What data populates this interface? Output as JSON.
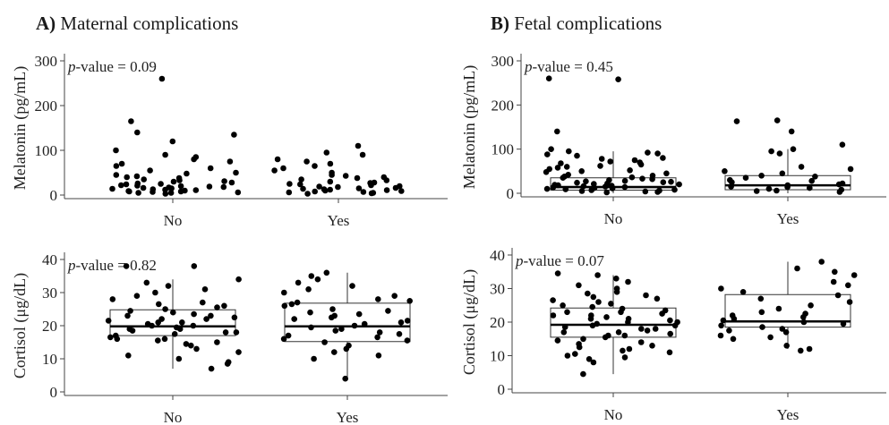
{
  "sections": {
    "a": {
      "letter": "A)",
      "title": "Maternal complications"
    },
    "b": {
      "letter": "B)",
      "title": "Fetal complications"
    }
  },
  "chart_data": [
    {
      "id": "a-melatonin",
      "type": "scatter",
      "title": "Maternal complications",
      "ylabel": "Melatonin (pg/mL)",
      "ylim": [
        0,
        300
      ],
      "yticks": [
        0,
        100,
        200,
        300
      ],
      "categories": [
        "No",
        "Yes"
      ],
      "annotation_prefix": "p",
      "annotation_suffix": "-value = 0.09",
      "boxes": null,
      "points": [
        [
          15,
          8,
          22,
          5,
          12,
          30,
          45,
          18,
          10,
          25,
          35,
          60,
          80,
          100,
          120,
          140,
          85,
          40,
          20,
          5,
          8,
          14,
          28,
          50,
          70,
          90,
          135,
          165,
          260,
          33,
          11,
          16,
          9,
          6,
          3,
          42,
          38,
          55,
          24,
          19,
          13,
          7,
          65,
          75,
          26,
          31,
          17,
          21,
          48
        ],
        [
          10,
          5,
          15,
          25,
          35,
          45,
          60,
          80,
          95,
          90,
          110,
          20,
          8,
          12,
          18,
          30,
          40,
          50,
          70,
          75,
          14,
          22,
          6,
          3,
          28,
          33,
          9,
          16,
          11,
          4,
          38,
          43,
          55,
          65,
          19,
          24,
          13,
          7,
          27
        ]
      ]
    },
    {
      "id": "b-melatonin",
      "type": "box",
      "title": "Fetal complications",
      "ylabel": "Melatonin (pg/mL)",
      "ylim": [
        0,
        300
      ],
      "yticks": [
        0,
        100,
        200,
        300
      ],
      "categories": [
        "No",
        "Yes"
      ],
      "annotation_prefix": "p",
      "annotation_suffix": "-value = 0.45",
      "boxes": [
        {
          "category": "No",
          "q1": 7,
          "median": 14,
          "q3": 35,
          "whisker_low": 0,
          "whisker_high": 95
        },
        {
          "category": "Yes",
          "q1": 8,
          "median": 18,
          "q3": 40,
          "whisker_low": 0,
          "whisker_high": 100
        }
      ],
      "points": [
        [
          5,
          8,
          10,
          12,
          14,
          15,
          18,
          20,
          22,
          25,
          28,
          30,
          35,
          40,
          45,
          50,
          55,
          60,
          65,
          70,
          75,
          80,
          85,
          90,
          95,
          100,
          140,
          260,
          258,
          3,
          6,
          9,
          11,
          13,
          16,
          17,
          19,
          21,
          24,
          27,
          32,
          38,
          42,
          48,
          52,
          58,
          62,
          68,
          72,
          78,
          88,
          92,
          2,
          4,
          7,
          26,
          33,
          36
        ],
        [
          5,
          10,
          15,
          20,
          25,
          30,
          35,
          40,
          50,
          60,
          90,
          95,
          100,
          110,
          140,
          165,
          163,
          8,
          12,
          18,
          22,
          28,
          45,
          55,
          3,
          6,
          14,
          38
        ]
      ]
    },
    {
      "id": "a-cortisol",
      "type": "box",
      "title": "Maternal complications",
      "ylabel": "Cortisol (μg/dL)",
      "ylim": [
        0,
        40
      ],
      "yticks": [
        0,
        10,
        20,
        30,
        40
      ],
      "categories": [
        "No",
        "Yes"
      ],
      "annotation_prefix": "p",
      "annotation_suffix": "-value = 0.82",
      "boxes": [
        {
          "category": "No",
          "q1": 17,
          "median": 19.8,
          "q3": 24.8,
          "whisker_low": 7,
          "whisker_high": 34
        },
        {
          "category": "Yes",
          "q1": 15.2,
          "median": 19.8,
          "q3": 26.8,
          "whisker_low": 4,
          "whisker_high": 36
        }
      ],
      "points": [
        [
          7,
          9,
          10,
          12,
          14,
          15,
          16,
          17,
          18,
          19,
          20,
          21,
          22,
          23,
          24,
          25,
          26,
          27,
          28,
          30,
          32,
          34,
          38,
          38,
          13,
          11,
          18.5,
          19.5,
          20.5,
          21.5,
          22.5,
          17.5,
          16.5,
          15.5,
          24.5,
          23.5,
          29,
          31,
          33,
          8.5,
          14.5,
          26.5,
          25.5,
          19,
          20,
          22,
          18,
          21,
          16,
          23
        ],
        [
          4,
          10,
          12,
          14,
          15,
          16,
          17,
          18,
          19,
          20,
          21,
          22,
          23,
          24,
          25,
          26,
          27,
          28,
          29,
          30,
          32,
          34,
          36,
          35,
          11,
          13,
          19.5,
          20.5,
          17.5,
          21.5,
          22.5,
          15.5,
          24.5,
          18.5,
          26.5,
          31,
          33,
          16.5,
          23.5,
          27.5
        ]
      ]
    },
    {
      "id": "b-cortisol",
      "type": "box",
      "title": "Fetal complications",
      "ylabel": "Cortisol (μg/dL)",
      "ylim": [
        0,
        40
      ],
      "yticks": [
        0,
        10,
        20,
        30,
        40
      ],
      "categories": [
        "No",
        "Yes"
      ],
      "annotation_prefix": "p",
      "annotation_suffix": "-value = 0.07",
      "boxes": [
        {
          "category": "No",
          "q1": 15.5,
          "median": 19.2,
          "q3": 24.2,
          "whisker_low": 4.5,
          "whisker_high": 34
        },
        {
          "category": "Yes",
          "q1": 18.5,
          "median": 20.2,
          "q3": 28.2,
          "whisker_low": 12,
          "whisker_high": 38
        }
      ],
      "points": [
        [
          4.5,
          8,
          9,
          10,
          11,
          12,
          13,
          14,
          15,
          16,
          17,
          18,
          19,
          20,
          21,
          22,
          23,
          24,
          25,
          26,
          27,
          28,
          29,
          30,
          32,
          34,
          34.5,
          18.5,
          19.5,
          20.5,
          17.5,
          16.5,
          21.5,
          22.5,
          15.5,
          14.5,
          23.5,
          24.5,
          12.5,
          13.5,
          26.5,
          27.5,
          19,
          20,
          18,
          21,
          17,
          22,
          16,
          23,
          25.5,
          28.5,
          31,
          33,
          11.5,
          10.5,
          9.5
        ],
        [
          12,
          13,
          15,
          16,
          17,
          18,
          19,
          20,
          21,
          22,
          23,
          24,
          25,
          26,
          28,
          29,
          30,
          32,
          34,
          35,
          38,
          36,
          19.5,
          20.5,
          18.5,
          21.5,
          17.5,
          22.5,
          15.5,
          27,
          31,
          11.5
        ]
      ]
    }
  ]
}
